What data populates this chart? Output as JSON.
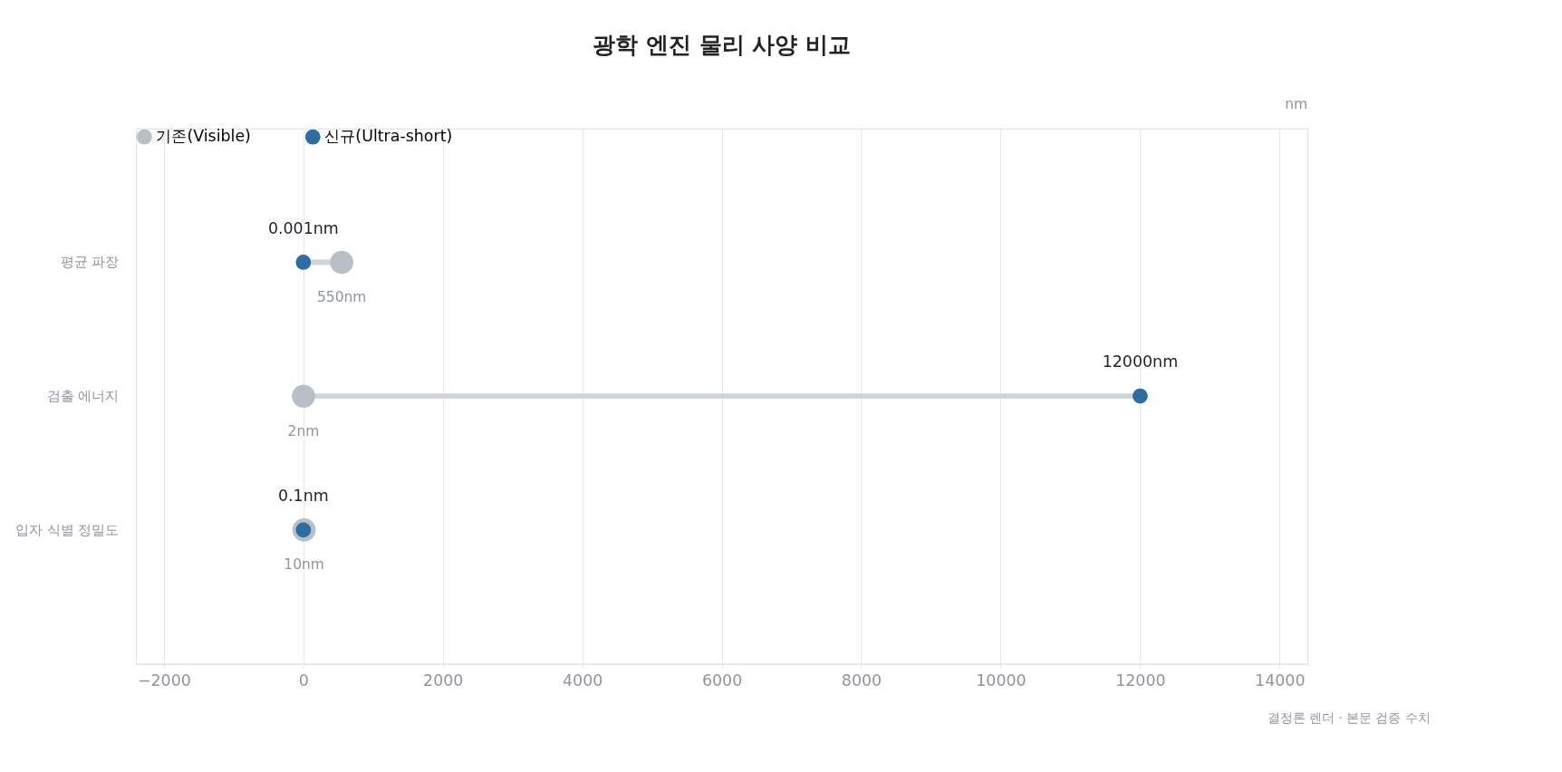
{
  "chart_data": {
    "type": "scatter",
    "orientation": "horizontal",
    "title": "광학 엔진 물리 사양 비교",
    "xlabel": "nm",
    "categories": [
      "평균 파장",
      "검출 에너지",
      "입자 식별 정밀도"
    ],
    "series": [
      {
        "name": "기존(Visible)",
        "color": "#b8bfc7",
        "values": [
          550,
          2,
          10
        ],
        "value_labels": [
          "550nm",
          "2nm",
          "10nm"
        ]
      },
      {
        "name": "신규(Ultra-short)",
        "color": "#2e6da4",
        "values": [
          0.001,
          12000,
          0.1
        ],
        "value_labels": [
          "0.001nm",
          "12000nm",
          "0.1nm"
        ]
      }
    ],
    "xlim": [
      -2400,
      14400
    ],
    "xticks": [
      {
        "value": -2000,
        "label": "−2000"
      },
      0,
      2000,
      4000,
      6000,
      8000,
      10000,
      12000,
      14000
    ],
    "grid": "x",
    "legend": "top left",
    "marker": "circle",
    "annotations": [
      "결정론 렌더 · 본문 검증 수치"
    ]
  }
}
